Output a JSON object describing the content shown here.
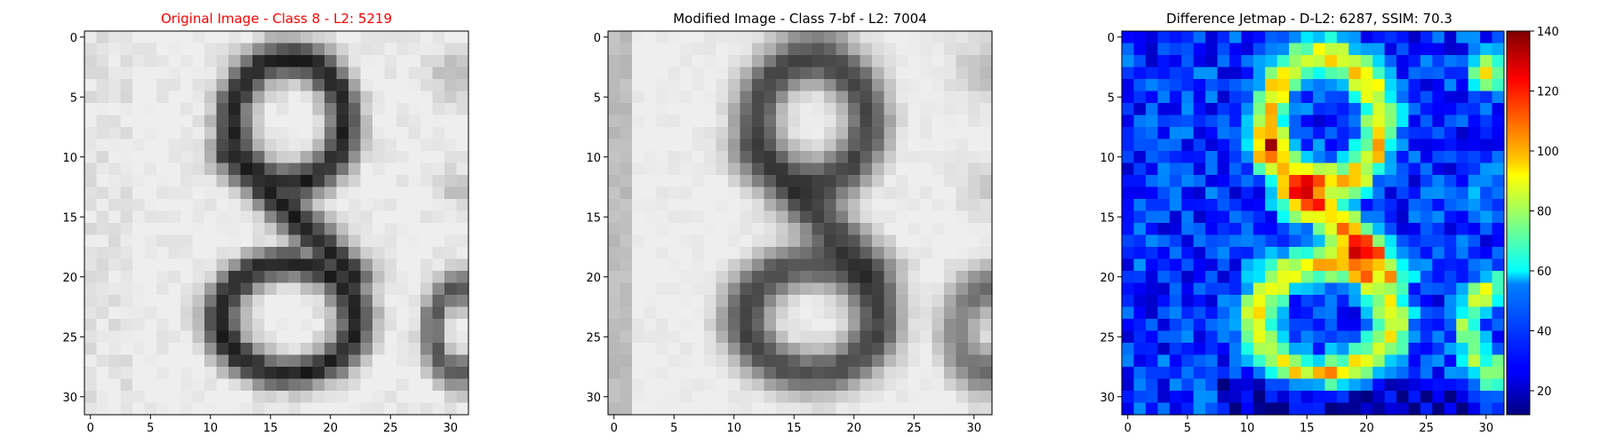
{
  "chart_data": [
    {
      "type": "heatmap",
      "title": "Original Image - Class 8 - L2: 5219",
      "title_color": "#ff0000",
      "colormap": "gray",
      "size": [
        32,
        32
      ],
      "xticks": [
        0,
        5,
        10,
        15,
        20,
        25,
        30
      ],
      "yticks": [
        0,
        5,
        10,
        15,
        20,
        25,
        30
      ],
      "xlim": [
        0,
        31
      ],
      "ylim": [
        31,
        0
      ],
      "content": "handwritten digit 8 with part of another digit at right edge"
    },
    {
      "type": "heatmap",
      "title": "Modified Image - Class 7-bf - L2: 7004",
      "title_color": "#000000",
      "colormap": "gray",
      "size": [
        32,
        32
      ],
      "xticks": [
        0,
        5,
        10,
        15,
        20,
        25,
        30
      ],
      "yticks": [
        0,
        5,
        10,
        15,
        20,
        25,
        30
      ],
      "xlim": [
        0,
        31
      ],
      "ylim": [
        31,
        0
      ],
      "content": "blurred version of the handwritten digit 8"
    },
    {
      "type": "heatmap",
      "title": "Difference Jetmap - D-L2: 6287, SSIM: 70.3",
      "title_color": "#000000",
      "colormap": "jet",
      "size": [
        32,
        32
      ],
      "xticks": [
        0,
        5,
        10,
        15,
        20,
        25,
        30
      ],
      "yticks": [
        0,
        5,
        10,
        15,
        20,
        25,
        30
      ],
      "xlim": [
        0,
        31
      ],
      "ylim": [
        31,
        0
      ],
      "colorbar": {
        "min": 12,
        "max": 140,
        "ticks": [
          20,
          40,
          60,
          80,
          100,
          120,
          140
        ]
      }
    }
  ]
}
